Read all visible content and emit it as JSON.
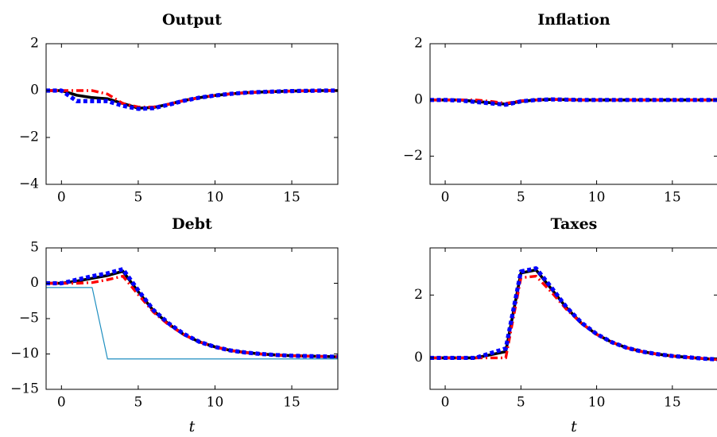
{
  "chart_data": [
    {
      "type": "line",
      "title": "Output",
      "xlabel": "",
      "xlim": [
        -1,
        18
      ],
      "ylim": [
        -4,
        2
      ],
      "xticks": [
        0,
        5,
        10,
        15
      ],
      "yticks": [
        -4,
        -2,
        0,
        2
      ],
      "ytick_labels": [
        "−4",
        "−2",
        "0",
        "2"
      ],
      "xtick_labels": [
        "0",
        "5",
        "10",
        "15"
      ],
      "grid": false,
      "series": [
        {
          "color": "#000000",
          "style": "solid-thick",
          "x": [
            -1,
            0,
            1,
            2,
            3,
            4,
            5,
            6,
            7,
            8,
            9,
            10,
            11,
            12,
            13,
            14,
            15,
            16,
            17,
            18
          ],
          "y": [
            0,
            0,
            -0.2,
            -0.3,
            -0.35,
            -0.55,
            -0.75,
            -0.72,
            -0.58,
            -0.42,
            -0.3,
            -0.21,
            -0.14,
            -0.09,
            -0.06,
            -0.04,
            -0.02,
            -0.01,
            0,
            0
          ]
        },
        {
          "color": "#ff0000",
          "style": "dashdot",
          "x": [
            -1,
            0,
            1,
            2,
            3,
            4,
            5,
            6,
            7,
            8,
            9,
            10,
            11,
            12,
            13,
            14,
            15,
            16,
            17,
            18
          ],
          "y": [
            0,
            0,
            0,
            0,
            -0.15,
            -0.55,
            -0.7,
            -0.7,
            -0.58,
            -0.42,
            -0.3,
            -0.21,
            -0.14,
            -0.09,
            -0.06,
            -0.04,
            -0.02,
            -0.01,
            0,
            0
          ]
        },
        {
          "color": "#0000ff",
          "style": "dotted-thick",
          "x": [
            -1,
            0,
            1,
            2,
            3,
            4,
            5,
            6,
            7,
            8,
            9,
            10,
            11,
            12,
            13,
            14,
            15,
            16,
            17,
            18
          ],
          "y": [
            0,
            0,
            -0.45,
            -0.45,
            -0.45,
            -0.65,
            -0.78,
            -0.75,
            -0.6,
            -0.43,
            -0.3,
            -0.21,
            -0.14,
            -0.09,
            -0.06,
            -0.04,
            -0.02,
            -0.01,
            0,
            0
          ]
        }
      ]
    },
    {
      "type": "line",
      "title": "Inflation",
      "xlabel": "",
      "xlim": [
        -1,
        18
      ],
      "ylim": [
        -3,
        2
      ],
      "xticks": [
        0,
        5,
        10,
        15
      ],
      "yticks": [
        -2,
        0,
        2
      ],
      "ytick_labels": [
        "−2",
        "0",
        "2"
      ],
      "xtick_labels": [
        "0",
        "5",
        "10",
        "15"
      ],
      "grid": false,
      "series": [
        {
          "color": "#000000",
          "style": "solid-thick",
          "x": [
            -1,
            0,
            1,
            2,
            3,
            4,
            5,
            6,
            7,
            8,
            9,
            10,
            12,
            14,
            16,
            18
          ],
          "y": [
            0,
            0,
            0,
            -0.05,
            -0.1,
            -0.15,
            -0.05,
            0,
            0.02,
            0.01,
            0,
            0,
            0,
            0,
            0,
            0
          ]
        },
        {
          "color": "#ff0000",
          "style": "dashdot",
          "x": [
            -1,
            0,
            1,
            2,
            3,
            4,
            5,
            6,
            7,
            8,
            9,
            10,
            12,
            14,
            16,
            18
          ],
          "y": [
            0,
            0,
            0,
            0,
            -0.05,
            -0.12,
            -0.03,
            0,
            0.02,
            0.01,
            0,
            0,
            0,
            0,
            0,
            0
          ]
        },
        {
          "color": "#0000ff",
          "style": "dotted-thick",
          "x": [
            -1,
            0,
            1,
            2,
            3,
            4,
            5,
            6,
            7,
            8,
            9,
            10,
            12,
            14,
            16,
            18
          ],
          "y": [
            0,
            0,
            -0.02,
            -0.07,
            -0.12,
            -0.17,
            -0.05,
            0,
            0.02,
            0.01,
            0,
            0,
            0,
            0,
            0,
            0
          ]
        }
      ]
    },
    {
      "type": "line",
      "title": "Debt",
      "xlabel": "t",
      "xlim": [
        -1,
        18
      ],
      "ylim": [
        -15,
        5
      ],
      "xticks": [
        0,
        5,
        10,
        15
      ],
      "yticks": [
        -15,
        -10,
        -5,
        0,
        5
      ],
      "ytick_labels": [
        "−15",
        "−10",
        "−5",
        "0",
        "5"
      ],
      "xtick_labels": [
        "0",
        "5",
        "10",
        "15"
      ],
      "grid": false,
      "series": [
        {
          "color": "#000000",
          "style": "solid-thick",
          "x": [
            -1,
            0,
            1,
            2,
            3,
            4,
            5,
            6,
            7,
            8,
            9,
            10,
            11,
            12,
            13,
            14,
            15,
            16,
            17,
            18
          ],
          "y": [
            0,
            0,
            0.3,
            0.7,
            1.1,
            1.7,
            -1.2,
            -3.9,
            -5.8,
            -7.3,
            -8.3,
            -9.0,
            -9.5,
            -9.8,
            -10.0,
            -10.15,
            -10.25,
            -10.3,
            -10.35,
            -10.4
          ]
        },
        {
          "color": "#ff0000",
          "style": "dashdot",
          "x": [
            -1,
            0,
            1,
            2,
            3,
            4,
            5,
            6,
            7,
            8,
            9,
            10,
            11,
            12,
            13,
            14,
            15,
            16,
            17,
            18
          ],
          "y": [
            0,
            0,
            0,
            0.1,
            0.5,
            1.0,
            -1.6,
            -4.1,
            -5.9,
            -7.3,
            -8.3,
            -9.0,
            -9.5,
            -9.8,
            -10.0,
            -10.15,
            -10.25,
            -10.3,
            -10.35,
            -10.4
          ]
        },
        {
          "color": "#0000ff",
          "style": "dotted-thick",
          "x": [
            -1,
            0,
            1,
            2,
            3,
            4,
            5,
            6,
            7,
            8,
            9,
            10,
            11,
            12,
            13,
            14,
            15,
            16,
            17,
            18
          ],
          "y": [
            0,
            0,
            0.5,
            1.0,
            1.4,
            2.0,
            -1.0,
            -3.8,
            -5.7,
            -7.2,
            -8.3,
            -9.0,
            -9.5,
            -9.8,
            -10.0,
            -10.15,
            -10.25,
            -10.3,
            -10.35,
            -10.4
          ]
        },
        {
          "color": "#1f8fc0",
          "style": "thin",
          "x": [
            -1,
            2,
            3,
            18
          ],
          "y": [
            -0.6,
            -0.6,
            -10.7,
            -10.7
          ]
        }
      ]
    },
    {
      "type": "line",
      "title": "Taxes",
      "xlabel": "t",
      "xlim": [
        -1,
        18
      ],
      "ylim": [
        -1,
        3.5
      ],
      "xticks": [
        0,
        5,
        10,
        15
      ],
      "yticks": [
        0,
        2
      ],
      "ytick_labels": [
        "0",
        "2"
      ],
      "xtick_labels": [
        "0",
        "5",
        "10",
        "15"
      ],
      "grid": false,
      "series": [
        {
          "color": "#000000",
          "style": "solid-thick",
          "x": [
            -1,
            0,
            1,
            2,
            3,
            4,
            5,
            6,
            7,
            8,
            9,
            10,
            11,
            12,
            13,
            14,
            15,
            16,
            17,
            18
          ],
          "y": [
            0,
            0,
            0,
            0,
            0.1,
            0.2,
            2.7,
            2.8,
            2.2,
            1.6,
            1.1,
            0.75,
            0.5,
            0.32,
            0.2,
            0.12,
            0.06,
            0.02,
            -0.02,
            -0.05
          ]
        },
        {
          "color": "#ff0000",
          "style": "dashdot",
          "x": [
            -1,
            0,
            1,
            2,
            3,
            4,
            5,
            6,
            7,
            8,
            9,
            10,
            11,
            12,
            13,
            14,
            15,
            16,
            17,
            18
          ],
          "y": [
            0,
            0,
            0,
            0,
            0,
            0,
            2.55,
            2.6,
            2.1,
            1.55,
            1.1,
            0.75,
            0.5,
            0.32,
            0.2,
            0.12,
            0.06,
            0.02,
            -0.02,
            -0.05
          ]
        },
        {
          "color": "#0000ff",
          "style": "dotted-thick",
          "x": [
            -1,
            0,
            1,
            2,
            3,
            4,
            5,
            6,
            7,
            8,
            9,
            10,
            11,
            12,
            13,
            14,
            15,
            16,
            17,
            18
          ],
          "y": [
            0,
            0,
            0,
            0,
            0.15,
            0.3,
            2.75,
            2.85,
            2.25,
            1.62,
            1.12,
            0.76,
            0.5,
            0.32,
            0.2,
            0.12,
            0.06,
            0.02,
            -0.02,
            -0.05
          ]
        }
      ]
    }
  ]
}
